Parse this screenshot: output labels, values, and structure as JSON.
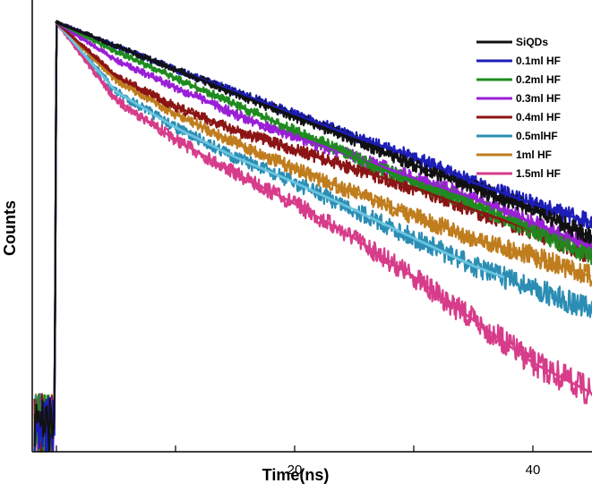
{
  "chart_data": {
    "type": "line",
    "title": "",
    "xlabel": "Time(ns)",
    "ylabel": "Counts",
    "xlim": [
      -2,
      45
    ],
    "ylim": [
      0,
      1
    ],
    "y_scale": "log",
    "y_tick_labels": "none",
    "grid": false,
    "legend_position": "top-right",
    "x_ticks": [
      20,
      40
    ],
    "x_tick_labels": [
      "20",
      "40"
    ],
    "excitation_peak_x": 0.0,
    "noise_floor_before_peak": 0.05,
    "series": [
      {
        "name": "SiQDs",
        "color": "#111111",
        "tau_ns": 19.0,
        "fit_frac": 1.0,
        "points": [
          [
            0,
            1.0
          ],
          [
            5,
            0.8
          ],
          [
            10,
            0.64
          ],
          [
            15,
            0.51
          ],
          [
            20,
            0.41
          ],
          [
            25,
            0.33
          ],
          [
            30,
            0.26
          ],
          [
            35,
            0.21
          ],
          [
            40,
            0.17
          ],
          [
            45,
            0.13
          ]
        ]
      },
      {
        "name": "0.1ml HF",
        "color": "#1d1db8",
        "tau_ns": 18.0,
        "fit_frac": 1.0,
        "points": [
          [
            0,
            1.0
          ],
          [
            5,
            0.8
          ],
          [
            10,
            0.64
          ],
          [
            15,
            0.52
          ],
          [
            20,
            0.42
          ],
          [
            25,
            0.34
          ],
          [
            30,
            0.28
          ],
          [
            35,
            0.22
          ],
          [
            40,
            0.18
          ],
          [
            45,
            0.15
          ]
        ]
      },
      {
        "name": "0.2ml HF",
        "color": "#1f8b1f",
        "tau_ns": 16.0,
        "fit_frac": 1.0,
        "points": [
          [
            0,
            1.0
          ],
          [
            5,
            0.76
          ],
          [
            10,
            0.59
          ],
          [
            15,
            0.46
          ],
          [
            20,
            0.36
          ],
          [
            25,
            0.28
          ],
          [
            30,
            0.22
          ],
          [
            35,
            0.18
          ],
          [
            40,
            0.14
          ],
          [
            45,
            0.11
          ]
        ]
      },
      {
        "name": "0.3ml HF",
        "color": "#9a1fd6",
        "tau_ns": 14.0,
        "fit_frac": 1.0,
        "points": [
          [
            0,
            1.0
          ],
          [
            5,
            0.7
          ],
          [
            10,
            0.54
          ],
          [
            15,
            0.42
          ],
          [
            20,
            0.34
          ],
          [
            25,
            0.28
          ],
          [
            30,
            0.23
          ],
          [
            35,
            0.19
          ],
          [
            40,
            0.15
          ],
          [
            45,
            0.12
          ]
        ]
      },
      {
        "name": "0.4ml HF",
        "color": "#8b1414",
        "tau_ns": 12.0,
        "fit_frac": 1.0,
        "points": [
          [
            0,
            1.0
          ],
          [
            5,
            0.6
          ],
          [
            10,
            0.45
          ],
          [
            15,
            0.36
          ],
          [
            20,
            0.3
          ],
          [
            25,
            0.25
          ],
          [
            30,
            0.21
          ],
          [
            35,
            0.17
          ],
          [
            40,
            0.14
          ],
          [
            45,
            0.11
          ]
        ]
      },
      {
        "name": "0.5mlHF",
        "color": "#2b8db3",
        "tau_ns": 11.0,
        "fit_frac": 0.83,
        "points": [
          [
            0,
            1.0
          ],
          [
            5,
            0.52
          ],
          [
            10,
            0.37
          ],
          [
            15,
            0.28
          ],
          [
            20,
            0.22
          ],
          [
            25,
            0.17
          ],
          [
            30,
            0.13
          ],
          [
            35,
            0.1
          ],
          [
            37.5,
            0.09
          ]
        ]
      },
      {
        "name": "1ml HF",
        "color": "#c07d1e",
        "tau_ns": 11.0,
        "fit_frac": 1.0,
        "points": [
          [
            0,
            1.0
          ],
          [
            5,
            0.58
          ],
          [
            10,
            0.42
          ],
          [
            15,
            0.32
          ],
          [
            20,
            0.25
          ],
          [
            25,
            0.2
          ],
          [
            30,
            0.16
          ],
          [
            35,
            0.13
          ],
          [
            40,
            0.11
          ],
          [
            45,
            0.09
          ]
        ]
      },
      {
        "name": "1.5ml HF",
        "color": "#d63c8a",
        "tau_ns": 9.0,
        "fit_frac": 1.0,
        "points": [
          [
            0,
            1.0
          ],
          [
            5,
            0.48
          ],
          [
            10,
            0.33
          ],
          [
            15,
            0.24
          ],
          [
            20,
            0.18
          ],
          [
            25,
            0.13
          ],
          [
            30,
            0.09
          ],
          [
            35,
            0.06
          ],
          [
            40,
            0.04
          ],
          [
            45,
            0.03
          ]
        ]
      }
    ]
  }
}
